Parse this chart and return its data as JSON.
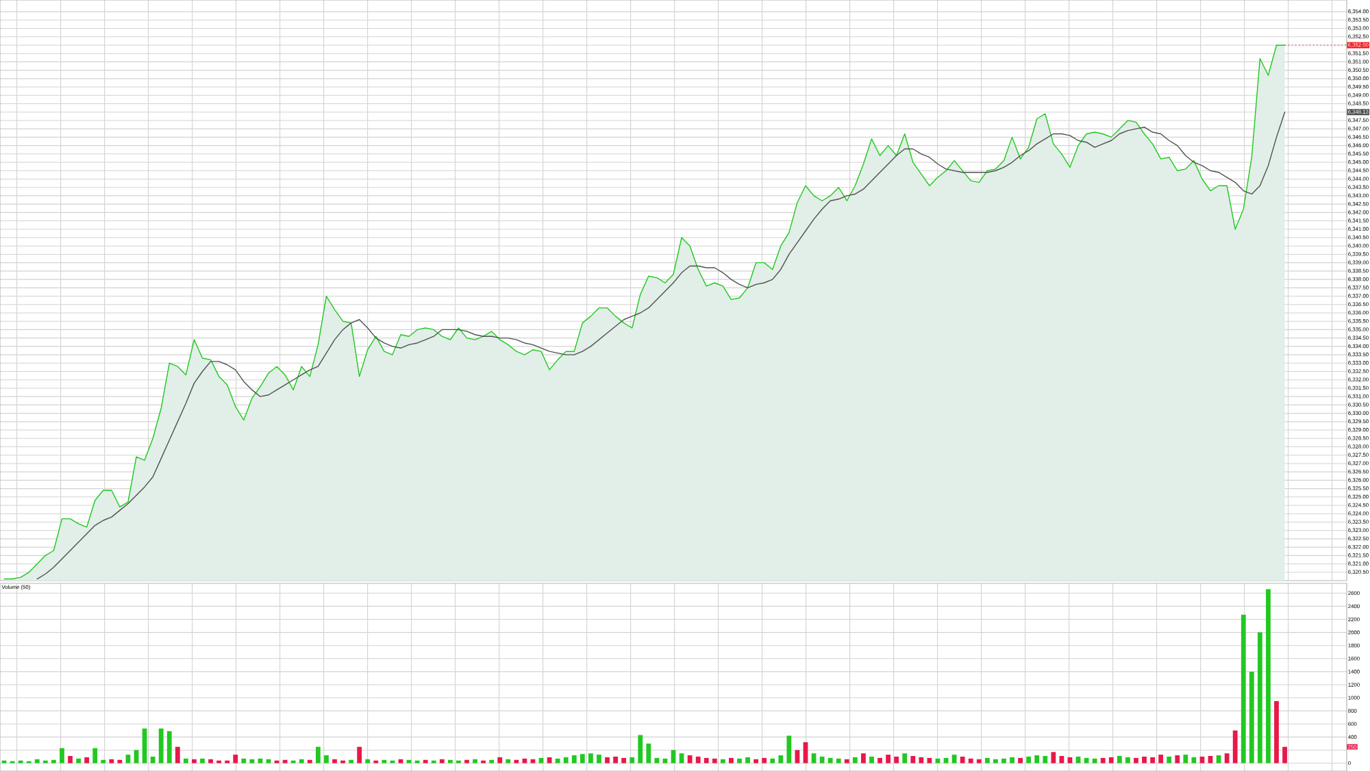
{
  "chart_data": [
    {
      "type": "area",
      "tick_labels": "y",
      "grid": true,
      "categories": [
        null,
        null,
        null,
        null,
        null,
        null,
        null,
        null,
        null,
        null,
        null,
        null,
        null,
        null,
        null,
        null,
        null,
        null,
        null,
        null,
        null,
        null,
        null,
        null,
        null,
        null,
        null,
        null,
        null,
        null,
        null,
        null,
        null,
        null,
        null,
        null,
        null,
        null,
        null,
        null,
        null,
        null,
        null,
        null,
        null,
        null,
        null,
        null,
        null,
        null,
        null,
        null,
        null,
        null,
        null,
        null,
        null,
        null,
        null,
        null,
        null,
        null,
        null,
        null,
        null,
        null,
        null,
        null,
        null,
        null,
        null,
        null,
        null,
        null,
        null,
        null,
        null,
        null,
        null,
        null,
        null,
        null,
        null,
        null,
        null,
        null,
        null,
        null,
        null,
        null,
        null,
        null,
        null,
        null,
        null,
        null,
        null,
        null,
        null,
        null,
        null,
        null,
        null,
        null,
        null,
        null,
        null,
        null,
        null,
        null,
        null,
        null,
        null,
        null,
        null,
        null,
        null,
        null,
        null,
        null,
        null,
        null,
        null,
        null,
        null,
        null,
        null,
        null,
        null,
        null,
        null,
        null,
        null,
        null,
        null,
        null,
        null,
        null,
        null,
        null,
        null,
        null,
        null,
        null,
        null,
        null,
        null,
        null,
        null,
        null,
        null,
        null,
        null,
        null,
        null,
        null,
        null,
        null,
        null,
        null,
        null,
        null,
        null
      ],
      "ylim": [
        6320,
        6354.7
      ],
      "yticks": [
        {
          "value": 6320.5,
          "label": "6,320.50"
        },
        {
          "value": 6321,
          "label": "6,321.00"
        },
        {
          "value": 6321.5,
          "label": "6,321.50"
        },
        {
          "value": 6322,
          "label": "6,322.00"
        },
        {
          "value": 6322.5,
          "label": "6,322.50"
        },
        {
          "value": 6323,
          "label": "6,323.00"
        },
        {
          "value": 6323.5,
          "label": "6,323.50"
        },
        {
          "value": 6324,
          "label": "6,324.00"
        },
        {
          "value": 6324.5,
          "label": "6,324.50"
        },
        {
          "value": 6325,
          "label": "6,325.00"
        },
        {
          "value": 6325.5,
          "label": "6,325.50"
        },
        {
          "value": 6326,
          "label": "6,326.00"
        },
        {
          "value": 6326.5,
          "label": "6,326.50"
        },
        {
          "value": 6327,
          "label": "6,327.00"
        },
        {
          "value": 6327.5,
          "label": "6,327.50"
        },
        {
          "value": 6328,
          "label": "6,328.00"
        },
        {
          "value": 6328.5,
          "label": "6,328.50"
        },
        {
          "value": 6329,
          "label": "6,329.00"
        },
        {
          "value": 6329.5,
          "label": "6,329.50"
        },
        {
          "value": 6330,
          "label": "6,330.00"
        },
        {
          "value": 6330.5,
          "label": "6,330.50"
        },
        {
          "value": 6331,
          "label": "6,331.00"
        },
        {
          "value": 6331.5,
          "label": "6,331.50"
        },
        {
          "value": 6332,
          "label": "6,332.00"
        },
        {
          "value": 6332.5,
          "label": "6,332.50"
        },
        {
          "value": 6333,
          "label": "6,333.00"
        },
        {
          "value": 6333.5,
          "label": "6,333.50"
        },
        {
          "value": 6334,
          "label": "6,334.00"
        },
        {
          "value": 6334.5,
          "label": "6,334.50"
        },
        {
          "value": 6335,
          "label": "6,335.00"
        },
        {
          "value": 6335.5,
          "label": "6,335.50"
        },
        {
          "value": 6336,
          "label": "6,336.00"
        },
        {
          "value": 6336.5,
          "label": "6,336.50"
        },
        {
          "value": 6337,
          "label": "6,337.00"
        },
        {
          "value": 6337.5,
          "label": "6,337.50"
        },
        {
          "value": 6338,
          "label": "6,338.00"
        },
        {
          "value": 6338.5,
          "label": "6,338.50"
        },
        {
          "value": 6339,
          "label": "6,339.00"
        },
        {
          "value": 6339.5,
          "label": "6,339.50"
        },
        {
          "value": 6340,
          "label": "6,340.00"
        },
        {
          "value": 6340.5,
          "label": "6,340.50"
        },
        {
          "value": 6341,
          "label": "6,341.00"
        },
        {
          "value": 6341.5,
          "label": "6,341.50"
        },
        {
          "value": 6342,
          "label": "6,342.00"
        },
        {
          "value": 6342.5,
          "label": "6,342.50"
        },
        {
          "value": 6343,
          "label": "6,343.00"
        },
        {
          "value": 6343.5,
          "label": "6,343.50"
        },
        {
          "value": 6344,
          "label": "6,344.00"
        },
        {
          "value": 6344.5,
          "label": "6,344.50"
        },
        {
          "value": 6345,
          "label": "6,345.00"
        },
        {
          "value": 6345.5,
          "label": "6,345.50"
        },
        {
          "value": 6346,
          "label": "6,346.00"
        },
        {
          "value": 6346.5,
          "label": "6,346.50"
        },
        {
          "value": 6347,
          "label": "6,347.00"
        },
        {
          "value": 6347.5,
          "label": "6,347.50"
        },
        {
          "value": 6348,
          "label": null
        },
        {
          "value": 6348.5,
          "label": "6,348.50"
        },
        {
          "value": 6349,
          "label": "6,349.00"
        },
        {
          "value": 6349.5,
          "label": "6,349.50"
        },
        {
          "value": 6350,
          "label": "6,350.00"
        },
        {
          "value": 6350.5,
          "label": "6,350.50"
        },
        {
          "value": 6351,
          "label": "6,351.00"
        },
        {
          "value": 6351.5,
          "label": "6,351.50"
        },
        {
          "value": 6352,
          "label": null
        },
        {
          "value": 6352.5,
          "label": "6,352.50"
        },
        {
          "value": 6353,
          "label": "6,353.00"
        },
        {
          "value": 6353.5,
          "label": "6,353.50"
        },
        {
          "value": 6354,
          "label": "6,354.00"
        }
      ],
      "series": [
        {
          "type": "area",
          "color": "#1ec81e",
          "values": [
            6320.1,
            6320.1,
            6320.2,
            6320.5,
            6321.0,
            6321.5,
            6321.8,
            6323.7,
            6323.7,
            6323.4,
            6323.2,
            6324.8,
            6325.4,
            6325.4,
            6324.4,
            6324.7,
            6327.4,
            6327.2,
            6328.5,
            6330.3,
            6333.0,
            6332.8,
            6332.3,
            6334.4,
            6333.3,
            6333.2,
            6332.2,
            6331.7,
            6330.4,
            6329.6,
            6330.9,
            6331.6,
            6332.4,
            6332.8,
            6332.3,
            6331.4,
            6332.8,
            6332.2,
            6334.1,
            6337.0,
            6336.2,
            6335.5,
            6335.4,
            6332.2,
            6333.8,
            6334.6,
            6333.7,
            6333.5,
            6334.7,
            6334.6,
            6335.0,
            6335.1,
            6335.0,
            6334.6,
            6334.4,
            6335.1,
            6334.5,
            6334.4,
            6334.6,
            6334.9,
            6334.4,
            6334.1,
            6333.7,
            6333.5,
            6333.8,
            6333.7,
            6332.6,
            6333.2,
            6333.7,
            6333.7,
            6335.4,
            6335.8,
            6336.3,
            6336.3,
            6335.8,
            6335.4,
            6335.1,
            6337.1,
            6338.2,
            6338.1,
            6337.8,
            6338.3,
            6340.5,
            6340.0,
            6338.6,
            6337.6,
            6337.8,
            6337.6,
            6336.8,
            6336.9,
            6337.5,
            6339.0,
            6339.0,
            6338.6,
            6340.0,
            6340.8,
            6342.6,
            6343.6,
            6343.0,
            6342.7,
            6343.0,
            6343.5,
            6342.7,
            6343.6,
            6344.9,
            6346.4,
            6345.4,
            6346.0,
            6345.4,
            6346.7,
            6345.0,
            6344.3,
            6343.6,
            6344.1,
            6344.5,
            6345.1,
            6344.5,
            6343.9,
            6343.8,
            6344.5,
            6344.6,
            6345.1,
            6346.5,
            6345.2,
            6345.9,
            6347.6,
            6347.9,
            6346.1,
            6345.5,
            6344.7,
            6346.0,
            6346.7,
            6346.8,
            6346.7,
            6346.5,
            6347.0,
            6347.5,
            6347.4,
            6346.7,
            6346.1,
            6345.2,
            6345.3,
            6344.5,
            6344.6,
            6345.1,
            6344.0,
            6343.3,
            6343.6,
            6343.6,
            6341.0,
            6342.2,
            6345.3,
            6351.2,
            6350.2,
            6352.0,
            6352.0,
            null,
            null,
            null,
            null,
            null,
            null,
            null
          ]
        },
        {
          "type": "line",
          "color": "#505050",
          "values": [
            null,
            null,
            null,
            null,
            6320.1,
            6320.4,
            6320.8,
            6321.3,
            6321.8,
            6322.3,
            6322.8,
            6323.3,
            6323.6,
            6323.8,
            6324.2,
            6324.6,
            6325.1,
            6325.6,
            6326.2,
            6327.3,
            6328.4,
            6329.5,
            6330.6,
            6331.8,
            6332.5,
            6333.1,
            6333.1,
            6332.9,
            6332.6,
            6331.9,
            6331.4,
            6331.0,
            6331.1,
            6331.4,
            6331.7,
            6332.0,
            6332.3,
            6332.6,
            6332.8,
            6333.6,
            6334.4,
            6335.0,
            6335.4,
            6335.6,
            6335.1,
            6334.5,
            6334.2,
            6334.0,
            6333.9,
            6334.1,
            6334.2,
            6334.4,
            6334.6,
            6335.0,
            6335.0,
            6335.0,
            6334.9,
            6334.7,
            6334.6,
            6334.6,
            6334.5,
            6334.5,
            6334.4,
            6334.2,
            6334.1,
            6333.9,
            6333.7,
            6333.6,
            6333.5,
            6333.5,
            6333.7,
            6334.0,
            6334.4,
            6334.8,
            6335.2,
            6335.6,
            6335.8,
            6336.0,
            6336.3,
            6336.8,
            6337.3,
            6337.8,
            6338.4,
            6338.8,
            6338.8,
            6338.7,
            6338.7,
            6338.4,
            6338.0,
            6337.7,
            6337.5,
            6337.7,
            6337.8,
            6338.0,
            6338.6,
            6339.5,
            6340.2,
            6340.9,
            6341.6,
            6342.2,
            6342.7,
            6342.8,
            6343.0,
            6343.1,
            6343.4,
            6343.9,
            6344.4,
            6344.9,
            6345.4,
            6345.8,
            6345.8,
            6345.5,
            6345.3,
            6344.9,
            6344.6,
            6344.5,
            6344.4,
            6344.4,
            6344.4,
            6344.4,
            6344.5,
            6344.7,
            6345.0,
            6345.4,
            6345.7,
            6346.1,
            6346.4,
            6346.7,
            6346.7,
            6346.6,
            6346.3,
            6346.2,
            6345.9,
            6346.1,
            6346.3,
            6346.7,
            6346.9,
            6347.0,
            6347.1,
            6346.8,
            6346.7,
            6346.3,
            6346.0,
            6345.4,
            6345.0,
            6344.8,
            6344.5,
            6344.4,
            6344.1,
            6343.8,
            6343.3,
            6343.1,
            6343.6,
            6344.8,
            6346.5,
            6348.0,
            null,
            null,
            null,
            null,
            null,
            null,
            null
          ]
        }
      ],
      "ref_lines": [
        {
          "axis": "y",
          "value": 6352.0,
          "label": "6,352.00",
          "color": "#f01c1c",
          "line_style": "dotted"
        }
      ],
      "annotations": [
        "6,348.13"
      ]
    },
    {
      "type": "bar",
      "title": "Volume (50)",
      "tick_labels": "y",
      "grid": true,
      "categories": [
        null,
        null,
        null,
        null,
        null,
        null,
        null,
        null,
        null,
        null,
        null,
        null,
        null,
        null,
        null,
        null,
        null,
        null,
        null,
        null,
        null,
        null,
        null,
        null,
        null,
        null,
        null,
        null,
        null,
        null,
        null,
        null,
        null,
        null,
        null,
        null,
        null,
        null,
        null,
        null,
        null,
        null,
        null,
        null,
        null,
        null,
        null,
        null,
        null,
        null,
        null,
        null,
        null,
        null,
        null,
        null,
        null,
        null,
        null,
        null,
        null,
        null,
        null,
        null,
        null,
        null,
        null,
        null,
        null,
        null,
        null,
        null,
        null,
        null,
        null,
        null,
        null,
        null,
        null,
        null,
        null,
        null,
        null,
        null,
        null,
        null,
        null,
        null,
        null,
        null,
        null,
        null,
        null,
        null,
        null,
        null,
        null,
        null,
        null,
        null,
        null,
        null,
        null,
        null,
        null,
        null,
        null,
        null,
        null,
        null,
        null,
        null,
        null,
        null,
        null,
        null,
        null,
        null,
        null,
        null,
        null,
        null,
        null,
        null,
        null,
        null,
        null,
        null,
        null,
        null,
        null,
        null,
        null,
        null,
        null,
        null,
        null,
        null,
        null,
        null,
        null,
        null,
        null,
        null,
        null,
        null,
        null,
        null,
        null,
        null,
        null,
        null,
        null,
        null,
        null,
        null,
        null,
        null,
        null,
        null,
        null,
        null,
        null
      ],
      "ylim": [
        -120,
        2750
      ],
      "yticks": [
        0,
        {
          "value": 200,
          "label": null
        },
        400,
        600,
        800,
        1000,
        1200,
        1400,
        1600,
        1800,
        2000,
        2200,
        2400,
        2600
      ],
      "values": [
        40,
        30,
        40,
        30,
        60,
        40,
        50,
        230,
        110,
        70,
        90,
        230,
        50,
        60,
        50,
        130,
        200,
        530,
        100,
        530,
        490,
        250,
        70,
        60,
        70,
        60,
        40,
        40,
        130,
        70,
        60,
        70,
        60,
        40,
        50,
        40,
        60,
        50,
        250,
        120,
        60,
        40,
        50,
        250,
        60,
        40,
        50,
        40,
        60,
        50,
        40,
        50,
        40,
        60,
        50,
        40,
        50,
        60,
        40,
        50,
        90,
        60,
        50,
        70,
        60,
        80,
        90,
        70,
        90,
        120,
        140,
        150,
        130,
        90,
        100,
        80,
        90,
        430,
        300,
        80,
        70,
        200,
        150,
        120,
        100,
        80,
        70,
        60,
        80,
        70,
        90,
        60,
        80,
        70,
        120,
        420,
        200,
        320,
        150,
        100,
        80,
        70,
        60,
        90,
        150,
        100,
        80,
        130,
        100,
        150,
        110,
        90,
        80,
        70,
        80,
        130,
        100,
        70,
        60,
        80,
        60,
        70,
        90,
        80,
        100,
        120,
        110,
        170,
        110,
        90,
        100,
        80,
        70,
        80,
        90,
        110,
        90,
        80,
        100,
        90,
        130,
        100,
        120,
        130,
        90,
        100,
        110,
        120,
        150,
        500,
        2270,
        1400,
        2000,
        2660,
        950,
        250,
        null,
        null,
        null,
        null,
        null,
        null,
        null
      ],
      "colors": [
        "#22c822",
        "#22c822",
        "#22c822",
        "#22c822",
        "#22c822",
        "#22c822",
        "#22c822",
        "#22c822",
        "#e8184a",
        "#22c822",
        "#e8184a",
        "#22c822",
        "#22c822",
        "#e8184a",
        "#e8184a",
        "#22c822",
        "#22c822",
        "#22c822",
        "#22c822",
        "#22c822",
        "#22c822",
        "#e8184a",
        "#22c822",
        "#e8184a",
        "#22c822",
        "#e8184a",
        "#e8184a",
        "#e8184a",
        "#e8184a",
        "#22c822",
        "#22c822",
        "#22c822",
        "#22c822",
        "#e8184a",
        "#e8184a",
        "#22c822",
        "#22c822",
        "#e8184a",
        "#22c822",
        "#22c822",
        "#e8184a",
        "#e8184a",
        "#22c822",
        "#e8184a",
        "#22c822",
        "#e8184a",
        "#22c822",
        "#22c822",
        "#e8184a",
        "#22c822",
        "#22c822",
        "#e8184a",
        "#22c822",
        "#e8184a",
        "#22c822",
        "#22c822",
        "#e8184a",
        "#22c822",
        "#e8184a",
        "#22c822",
        "#e8184a",
        "#22c822",
        "#e8184a",
        "#e8184a",
        "#e8184a",
        "#22c822",
        "#e8184a",
        "#22c822",
        "#22c822",
        "#22c822",
        "#22c822",
        "#22c822",
        "#22c822",
        "#e8184a",
        "#e8184a",
        "#e8184a",
        "#22c822",
        "#22c822",
        "#22c822",
        "#22c822",
        "#22c822",
        "#22c822",
        "#22c822",
        "#e8184a",
        "#e8184a",
        "#e8184a",
        "#e8184a",
        "#22c822",
        "#e8184a",
        "#22c822",
        "#22c822",
        "#e8184a",
        "#e8184a",
        "#22c822",
        "#22c822",
        "#22c822",
        "#e8184a",
        "#e8184a",
        "#22c822",
        "#22c822",
        "#22c822",
        "#22c822",
        "#e8184a",
        "#22c822",
        "#e8184a",
        "#22c822",
        "#e8184a",
        "#e8184a",
        "#e8184a",
        "#22c822",
        "#e8184a",
        "#e8184a",
        "#e8184a",
        "#22c822",
        "#22c822",
        "#22c822",
        "#e8184a",
        "#e8184a",
        "#e8184a",
        "#22c822",
        "#22c822",
        "#22c822",
        "#22c822",
        "#e8184a",
        "#22c822",
        "#22c822",
        "#22c822",
        "#e8184a",
        "#e8184a",
        "#e8184a",
        "#22c822",
        "#22c822",
        "#22c822",
        "#e8184a",
        "#e8184a",
        "#22c822",
        "#22c822",
        "#e8184a",
        "#e8184a",
        "#e8184a",
        "#e8184a",
        "#22c822",
        "#e8184a",
        "#22c822",
        "#22c822",
        "#e8184a",
        "#e8184a",
        "#22c822",
        "#e8184a",
        "#e8184a",
        "#22c822",
        "#22c822",
        "#22c822",
        "#22c822",
        "#e8184a",
        "#e8184a",
        null,
        null,
        null,
        null,
        null,
        null,
        null
      ],
      "annotations": [
        {
          "text": "250",
          "y": 250
        }
      ]
    }
  ]
}
